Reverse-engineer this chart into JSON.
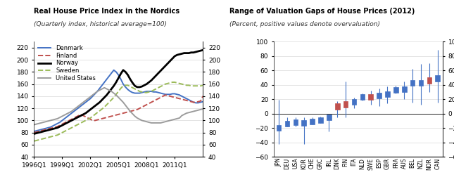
{
  "left_title": "Real House Price Index in the Nordics",
  "left_subtitle": "(Quarterly index, historical average=100)",
  "left_xlabels": [
    "1996Q1",
    "1999Q1",
    "2002Q1",
    "2005Q1",
    "2008Q1",
    "2011Q1"
  ],
  "left_ylim": [
    40,
    230
  ],
  "left_yticks": [
    40,
    60,
    80,
    100,
    120,
    140,
    160,
    180,
    200,
    220
  ],
  "series_order": [
    "Denmark",
    "Finland",
    "Norway",
    "Sweden",
    "United States"
  ],
  "series": {
    "Denmark": {
      "color": "#4472C4",
      "linestyle": "-",
      "linewidth": 1.4,
      "values": [
        82,
        83,
        84,
        85,
        86,
        87,
        88,
        89,
        91,
        93,
        95,
        97,
        100,
        103,
        106,
        109,
        112,
        115,
        118,
        121,
        124,
        127,
        130,
        133,
        136,
        140,
        144,
        148,
        153,
        158,
        163,
        168,
        173,
        178,
        183,
        180,
        175,
        168,
        160,
        155,
        151,
        148,
        146,
        145,
        145,
        145,
        146,
        147,
        148,
        148,
        148,
        147,
        147,
        146,
        145,
        144,
        143,
        143,
        143,
        144,
        144,
        143,
        142,
        140,
        138,
        136,
        134,
        132,
        130,
        129,
        129,
        130,
        131
      ]
    },
    "Finland": {
      "color": "#C0504D",
      "linestyle": "--",
      "linewidth": 1.4,
      "values": [
        80,
        81,
        82,
        83,
        84,
        85,
        86,
        87,
        88,
        89,
        90,
        92,
        94,
        96,
        98,
        100,
        102,
        104,
        106,
        108,
        110,
        108,
        106,
        104,
        102,
        100,
        100,
        101,
        102,
        103,
        104,
        105,
        106,
        107,
        108,
        109,
        110,
        111,
        112,
        113,
        114,
        115,
        116,
        117,
        118,
        120,
        122,
        124,
        126,
        128,
        130,
        132,
        134,
        136,
        138,
        140,
        142,
        141,
        140,
        139,
        138,
        137,
        136,
        135,
        134,
        133,
        132,
        131,
        130,
        130,
        131,
        132,
        140
      ]
    },
    "Norway": {
      "color": "#000000",
      "linestyle": "-",
      "linewidth": 2.0,
      "values": [
        78,
        79,
        80,
        81,
        82,
        83,
        84,
        85,
        86,
        87,
        88,
        90,
        92,
        94,
        96,
        98,
        100,
        102,
        104,
        106,
        108,
        110,
        112,
        115,
        118,
        121,
        124,
        127,
        130,
        134,
        138,
        142,
        147,
        152,
        157,
        163,
        170,
        177,
        183,
        180,
        175,
        168,
        162,
        157,
        155,
        155,
        156,
        158,
        160,
        163,
        166,
        170,
        174,
        178,
        182,
        186,
        190,
        194,
        198,
        202,
        206,
        208,
        209,
        210,
        211,
        211,
        211,
        212,
        212,
        213,
        214,
        215,
        216
      ]
    },
    "Sweden": {
      "color": "#9BBB59",
      "linestyle": "--",
      "linewidth": 1.4,
      "values": [
        66,
        67,
        68,
        69,
        70,
        71,
        72,
        73,
        74,
        75,
        76,
        78,
        80,
        82,
        84,
        86,
        88,
        90,
        92,
        94,
        96,
        98,
        100,
        102,
        104,
        107,
        110,
        113,
        116,
        119,
        122,
        126,
        130,
        134,
        138,
        143,
        148,
        153,
        157,
        158,
        158,
        156,
        154,
        152,
        150,
        148,
        147,
        146,
        146,
        147,
        148,
        150,
        152,
        154,
        156,
        158,
        160,
        161,
        162,
        163,
        163,
        162,
        161,
        160,
        159,
        158,
        158,
        157,
        157,
        157,
        157,
        157,
        158
      ]
    },
    "United States": {
      "color": "#9C9C9C",
      "linestyle": "-",
      "linewidth": 1.4,
      "values": [
        93,
        94,
        95,
        96,
        97,
        98,
        99,
        100,
        101,
        102,
        103,
        105,
        107,
        109,
        111,
        113,
        115,
        118,
        121,
        124,
        127,
        130,
        133,
        136,
        139,
        142,
        145,
        148,
        150,
        152,
        154,
        152,
        150,
        148,
        145,
        142,
        138,
        134,
        130,
        125,
        120,
        115,
        111,
        107,
        104,
        102,
        100,
        99,
        98,
        97,
        96,
        96,
        96,
        96,
        96,
        97,
        98,
        99,
        100,
        101,
        102,
        103,
        104,
        108,
        110,
        112,
        113,
        114,
        115,
        116,
        117,
        118,
        119
      ]
    }
  },
  "right_title": "Range of Valuation Gaps of House Prices (2012)",
  "right_subtitle": "(Percent, positive values denote overvaluation)",
  "right_ylim": [
    -60,
    100
  ],
  "right_yticks": [
    -60,
    -40,
    -20,
    0,
    20,
    40,
    60,
    80,
    100
  ],
  "countries": [
    "JPN",
    "DEU",
    "USA",
    "KOR",
    "CHE",
    "GRC",
    "IRL",
    "DNK",
    "FIN",
    "ITA",
    "NLD",
    "SWE",
    "ESP",
    "GBR",
    "FRA",
    "AUS",
    "BEL",
    "NZL",
    "NOR",
    "CAN"
  ],
  "medians": [
    -20,
    -14,
    -12,
    -13,
    -11,
    -9,
    -5,
    10,
    13,
    16,
    23,
    23,
    25,
    27,
    33,
    34,
    43,
    43,
    46,
    49
  ],
  "low": [
    -42,
    -18,
    -18,
    -42,
    -15,
    -13,
    -25,
    -5,
    -5,
    8,
    18,
    12,
    10,
    14,
    28,
    20,
    15,
    12,
    30,
    15
  ],
  "high": [
    19,
    -5,
    -5,
    -5,
    -5,
    -4,
    -2,
    17,
    45,
    22,
    28,
    32,
    35,
    38,
    39,
    45,
    62,
    69,
    70,
    88
  ],
  "red_markers": [
    "DNK",
    "FIN",
    "SWE",
    "NOR"
  ],
  "bar_color": "#4472C4",
  "red_color": "#C0504D"
}
